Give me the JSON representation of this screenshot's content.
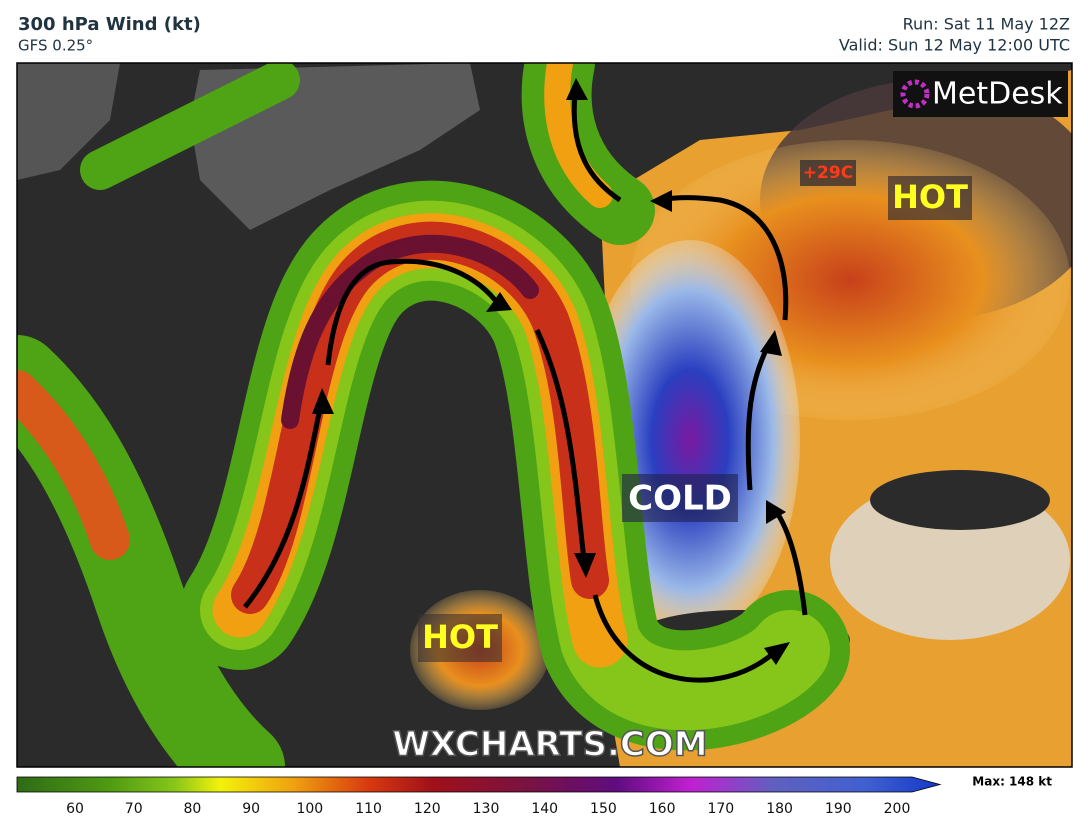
{
  "header": {
    "title": "300 hPa Wind (kt)",
    "model": "GFS 0.25°",
    "run": "Run: Sat 11 May 12Z",
    "valid": "Valid: Sun 12 May 12:00 UTC"
  },
  "map": {
    "hot_west": "HOT",
    "cold": "COLD",
    "hot_east": "HOT",
    "temp_max": "+29C",
    "logo": "MetDesk",
    "watermark": "WXCHARTS.COM"
  },
  "colorbar": {
    "ticks": [
      60,
      70,
      80,
      90,
      100,
      110,
      120,
      130,
      140,
      150,
      160,
      170,
      180,
      190,
      200
    ],
    "max_label": "Max: 148 kt"
  }
}
